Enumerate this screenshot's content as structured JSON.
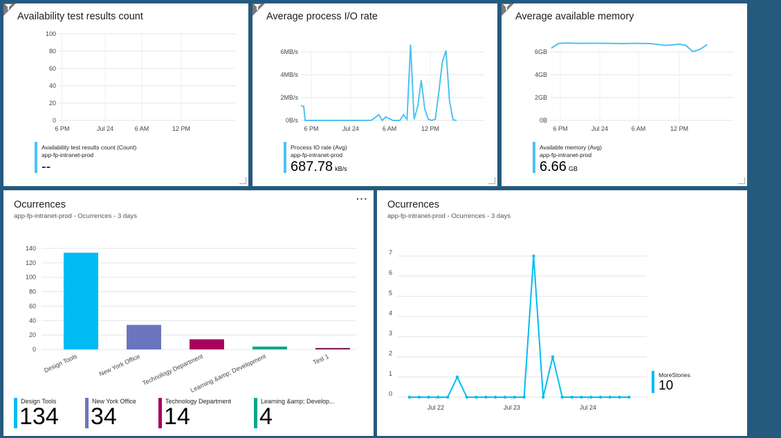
{
  "tiles": {
    "availability": {
      "title": "Availability test results count",
      "y_ticks": [
        "100",
        "80",
        "60",
        "40",
        "20",
        "0"
      ],
      "x_ticks": [
        "6 PM",
        "Jul 24",
        "6 AM",
        "12 PM"
      ],
      "legend_line1": "Availability test results count (Count)",
      "legend_line2": "app-fp-intranet-prod",
      "value": "--",
      "unit": "",
      "color": "#4cc2f1"
    },
    "io_rate": {
      "title": "Average process I/O rate",
      "y_ticks": [
        "6MB/s",
        "4MB/s",
        "2MB/s",
        "0B/s"
      ],
      "x_ticks": [
        "6 PM",
        "Jul 24",
        "6 AM",
        "12 PM"
      ],
      "legend_line1": "Process IO rate (Avg)",
      "legend_line2": "app-fp-intranet-prod",
      "value": "687.78",
      "unit": "kB/s",
      "color": "#4cc2f1"
    },
    "memory": {
      "title": "Average available memory",
      "y_ticks": [
        "6GB",
        "4GB",
        "2GB",
        "0B"
      ],
      "x_ticks": [
        "6 PM",
        "Jul 24",
        "6 AM",
        "12 PM"
      ],
      "legend_line1": "Available memory (Avg)",
      "legend_line2": "app-fp-intranet-prod",
      "value": "6.66",
      "unit": "GB",
      "color": "#4cc2f1"
    },
    "occ_bar": {
      "title": "Ocurrences",
      "subtitle": "app-fp-intranet-prod - Ocurrences - 3 days",
      "more": "···",
      "legend": [
        {
          "label": "Design Tools",
          "value": "134",
          "color": "#00bcf2"
        },
        {
          "label": "New York Office",
          "value": "34",
          "color": "#6b75bf"
        },
        {
          "label": "Technology Department",
          "value": "14",
          "color": "#a8005e"
        },
        {
          "label": "Learning &amp; Develop...",
          "value": "4",
          "color": "#00a88f"
        }
      ]
    },
    "occ_line": {
      "title": "Ocurrences",
      "subtitle": "app-fp-intranet-prod - Ocurrences - 3 days",
      "legend_label": "MoreStories",
      "legend_value": "10",
      "color": "#00bcf2"
    }
  },
  "chart_data": [
    {
      "type": "line",
      "title": "Availability test results count",
      "x": [
        "6 PM",
        "Jul 24",
        "6 AM",
        "12 PM"
      ],
      "ylim": [
        0,
        100
      ],
      "series": []
    },
    {
      "type": "line",
      "title": "Average process I/O rate",
      "ylabel": "MB/s",
      "ylim": [
        0,
        7
      ],
      "x_hours": [
        0,
        0.4,
        0.6,
        1,
        2,
        3,
        4,
        5,
        6,
        7,
        8,
        9,
        10,
        11,
        11.5,
        12,
        13,
        13.5,
        14,
        14.5,
        15,
        15.5,
        16,
        16.5,
        17,
        17.5,
        18,
        18.5,
        19,
        19.5,
        20,
        20.5,
        21,
        21.5,
        22
      ],
      "series": [
        {
          "name": "Process IO rate (Avg)",
          "values": [
            1.3,
            1.2,
            0,
            0,
            0,
            0,
            0,
            0,
            0,
            0,
            0,
            0,
            0.02,
            0.5,
            0,
            0.3,
            0,
            0,
            0,
            0.5,
            0.1,
            6.6,
            0.1,
            1.2,
            3.5,
            1.0,
            0.1,
            0,
            0.1,
            2.5,
            5.1,
            6.1,
            1.7,
            0.05,
            0
          ]
        }
      ]
    },
    {
      "type": "line",
      "title": "Average available memory",
      "ylabel": "GB",
      "ylim": [
        0,
        7
      ],
      "x_hours": [
        0,
        1,
        2,
        4,
        6,
        8,
        10,
        12,
        14,
        16,
        17,
        18,
        19,
        20,
        21,
        22
      ],
      "series": [
        {
          "name": "Available memory (Avg)",
          "values": [
            6.3,
            6.7,
            6.75,
            6.72,
            6.73,
            6.72,
            6.7,
            6.72,
            6.7,
            6.55,
            6.58,
            6.65,
            6.55,
            6.0,
            6.2,
            6.6
          ]
        }
      ]
    },
    {
      "type": "bar",
      "title": "Ocurrences",
      "categories": [
        "Design Tools",
        "New York Office",
        "Technology Department",
        "Learning &amp; Development",
        "Test 1"
      ],
      "values": [
        134,
        34,
        14,
        4,
        2
      ],
      "colors": [
        "#00bcf2",
        "#6b75bf",
        "#a8005e",
        "#00a88f",
        "#7d1f4f"
      ],
      "y_ticks": [
        0,
        20,
        40,
        60,
        80,
        100,
        120,
        140
      ],
      "ylim": [
        0,
        140
      ]
    },
    {
      "type": "line",
      "title": "Ocurrences",
      "x_ticks": [
        "Jul 22",
        "Jul 23",
        "Jul 24"
      ],
      "y_ticks": [
        0,
        1,
        2,
        3,
        4,
        5,
        6,
        7
      ],
      "ylim": [
        0,
        7
      ],
      "series": [
        {
          "name": "MoreStories",
          "values": [
            0,
            0,
            0,
            0,
            0,
            1,
            0,
            0,
            0,
            0,
            0,
            0,
            0,
            7,
            0,
            2,
            0,
            0,
            0,
            0,
            0,
            0,
            0,
            0
          ]
        }
      ]
    }
  ]
}
